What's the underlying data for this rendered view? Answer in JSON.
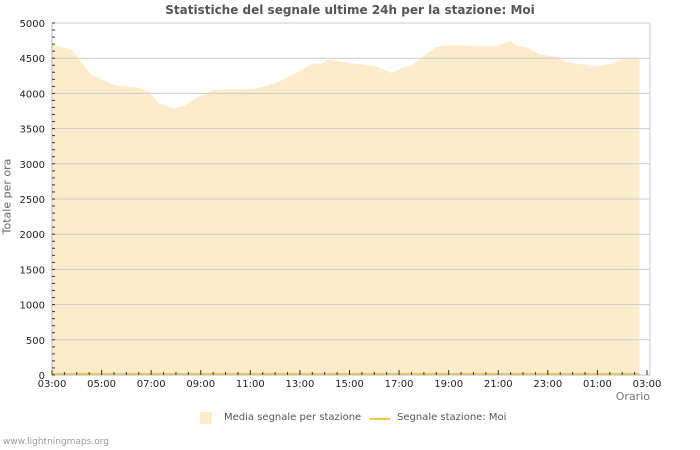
{
  "title": "Statistiche del segnale ultime 24h per la stazione: Moi",
  "footer": "www.lightningmaps.org",
  "legend": {
    "area_label": "Media segnale per stazione",
    "line_label": "Segnale stazione: Moi"
  },
  "colors": {
    "area_fill": "#fdeccb",
    "line": "#f5c842",
    "grid": "#cccccc"
  },
  "chart_data": {
    "type": "area",
    "title": "Statistiche del segnale ultime 24h per la stazione: Moi",
    "xlabel": "Orario",
    "ylabel": "Totale per ora",
    "ylim": [
      0,
      5000
    ],
    "yticks": [
      0,
      500,
      1000,
      1500,
      2000,
      2500,
      3000,
      3500,
      4000,
      4500,
      5000
    ],
    "xticks": [
      "03:00",
      "05:00",
      "07:00",
      "09:00",
      "11:00",
      "13:00",
      "15:00",
      "17:00",
      "19:00",
      "21:00",
      "23:00",
      "01:00",
      "03:00"
    ],
    "grid": true,
    "legend_position": "bottom",
    "series": [
      {
        "name": "Media segnale per stazione",
        "type": "area",
        "x_hours_from_start": [
          0,
          0.8,
          1.6,
          2.1,
          2.5,
          2.9,
          3.5,
          3.9,
          4.3,
          4.9,
          5.3,
          5.9,
          6.5,
          7.5,
          8.1,
          8.7,
          9.3,
          9.9,
          10.5,
          10.9,
          11.1,
          11.7,
          12.3,
          13.1,
          13.7,
          14.1,
          14.5,
          15.1,
          15.5,
          16.3,
          17.1,
          17.9,
          18.3,
          18.5,
          18.8,
          19.1,
          19.7,
          20.3,
          20.7,
          21.3,
          21.9,
          22.5,
          23.1,
          23.7
        ],
        "values": [
          4700,
          4620,
          4250,
          4190,
          4120,
          4100,
          4080,
          4020,
          3860,
          3790,
          3820,
          3950,
          4050,
          4060,
          4060,
          4110,
          4190,
          4300,
          4420,
          4430,
          4480,
          4450,
          4420,
          4380,
          4290,
          4360,
          4400,
          4560,
          4660,
          4690,
          4670,
          4670,
          4720,
          4740,
          4670,
          4660,
          4550,
          4520,
          4450,
          4420,
          4380,
          4420,
          4490,
          4490
        ]
      },
      {
        "name": "Segnale stazione: Moi",
        "type": "line",
        "values_note": "flat at 0 across the full 24h",
        "x_hours_from_start": [
          0,
          24
        ],
        "values": [
          0,
          0
        ]
      }
    ]
  }
}
